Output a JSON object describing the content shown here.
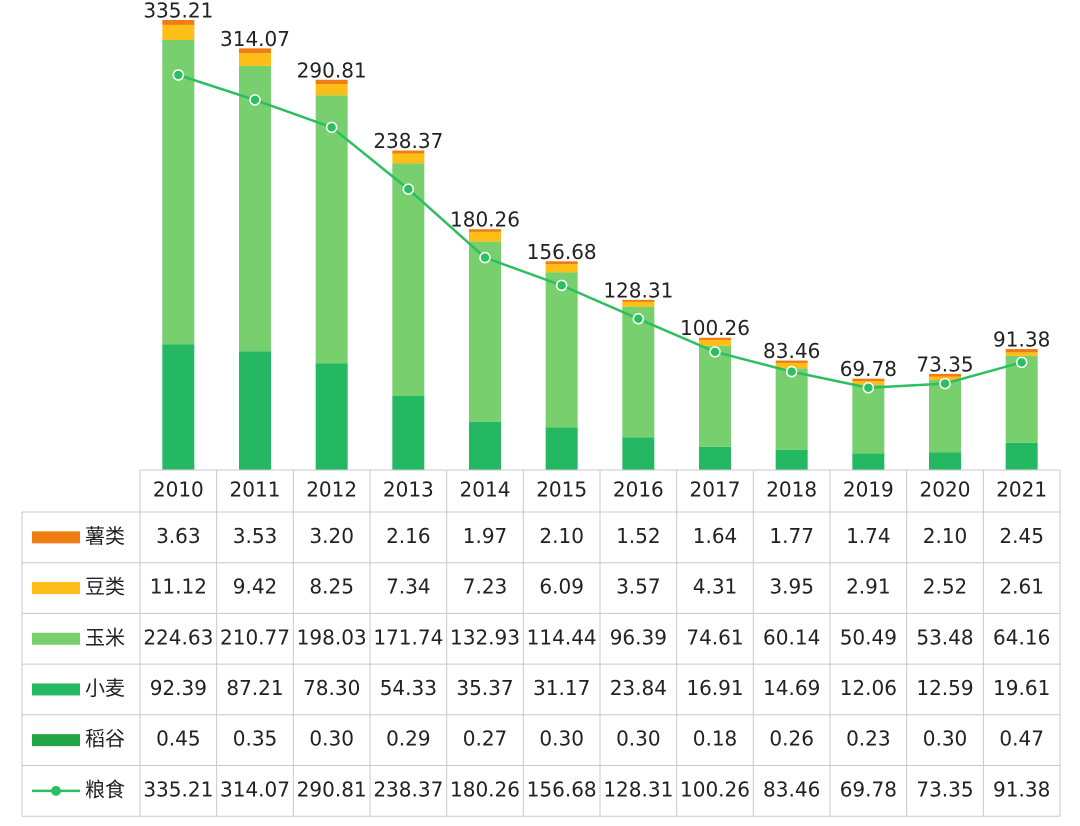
{
  "chart_data": {
    "type": "bar",
    "stacked": true,
    "categories": [
      "2010",
      "2011",
      "2012",
      "2013",
      "2014",
      "2015",
      "2016",
      "2017",
      "2018",
      "2019",
      "2020",
      "2021"
    ],
    "series": [
      {
        "name": "薯类",
        "color": "#f07d14",
        "values": [
          3.63,
          3.53,
          3.2,
          2.16,
          1.97,
          2.1,
          1.52,
          1.64,
          1.77,
          1.74,
          2.1,
          2.45
        ],
        "value_labels": [
          "3.63",
          "3.53",
          "3.20",
          "2.16",
          "1.97",
          "2.10",
          "1.52",
          "1.64",
          "1.77",
          "1.74",
          "2.10",
          "2.45"
        ]
      },
      {
        "name": "豆类",
        "color": "#fdbf17",
        "values": [
          11.12,
          9.42,
          8.25,
          7.34,
          7.23,
          6.09,
          3.57,
          4.31,
          3.95,
          2.91,
          2.52,
          2.61
        ],
        "value_labels": [
          "11.12",
          "9.42",
          "8.25",
          "7.34",
          "7.23",
          "6.09",
          "3.57",
          "4.31",
          "3.95",
          "2.91",
          "2.52",
          "2.61"
        ]
      },
      {
        "name": "玉米",
        "color": "#77cf6e",
        "values": [
          224.63,
          210.77,
          198.03,
          171.74,
          132.93,
          114.44,
          96.39,
          74.61,
          60.14,
          50.49,
          53.48,
          64.16
        ],
        "value_labels": [
          "224.63",
          "210.77",
          "198.03",
          "171.74",
          "132.93",
          "114.44",
          "96.39",
          "74.61",
          "60.14",
          "50.49",
          "53.48",
          "64.16"
        ]
      },
      {
        "name": "小麦",
        "color": "#25b862",
        "values": [
          92.39,
          87.21,
          78.3,
          54.33,
          35.37,
          31.17,
          23.84,
          16.91,
          14.69,
          12.06,
          12.59,
          19.61
        ],
        "value_labels": [
          "92.39",
          "87.21",
          "78.30",
          "54.33",
          "35.37",
          "31.17",
          "23.84",
          "16.91",
          "14.69",
          "12.06",
          "12.59",
          "19.61"
        ]
      },
      {
        "name": "稻谷",
        "color": "#1fa543",
        "values": [
          0.45,
          0.35,
          0.3,
          0.29,
          0.27,
          0.3,
          0.3,
          0.18,
          0.26,
          0.23,
          0.3,
          0.47
        ],
        "value_labels": [
          "0.45",
          "0.35",
          "0.30",
          "0.29",
          "0.27",
          "0.30",
          "0.30",
          "0.18",
          "0.26",
          "0.23",
          "0.30",
          "0.47"
        ]
      },
      {
        "name": "粮食",
        "color": "#2cbf5f",
        "type": "line",
        "axis": "y2",
        "values": [
          335.21,
          314.07,
          290.81,
          238.37,
          180.26,
          156.68,
          128.31,
          100.26,
          83.46,
          69.78,
          73.35,
          91.38
        ],
        "value_labels": [
          "335.21",
          "314.07",
          "290.81",
          "238.37",
          "180.26",
          "156.68",
          "128.31",
          "100.26",
          "83.46",
          "69.78",
          "73.35",
          "91.38"
        ]
      }
    ]
  }
}
